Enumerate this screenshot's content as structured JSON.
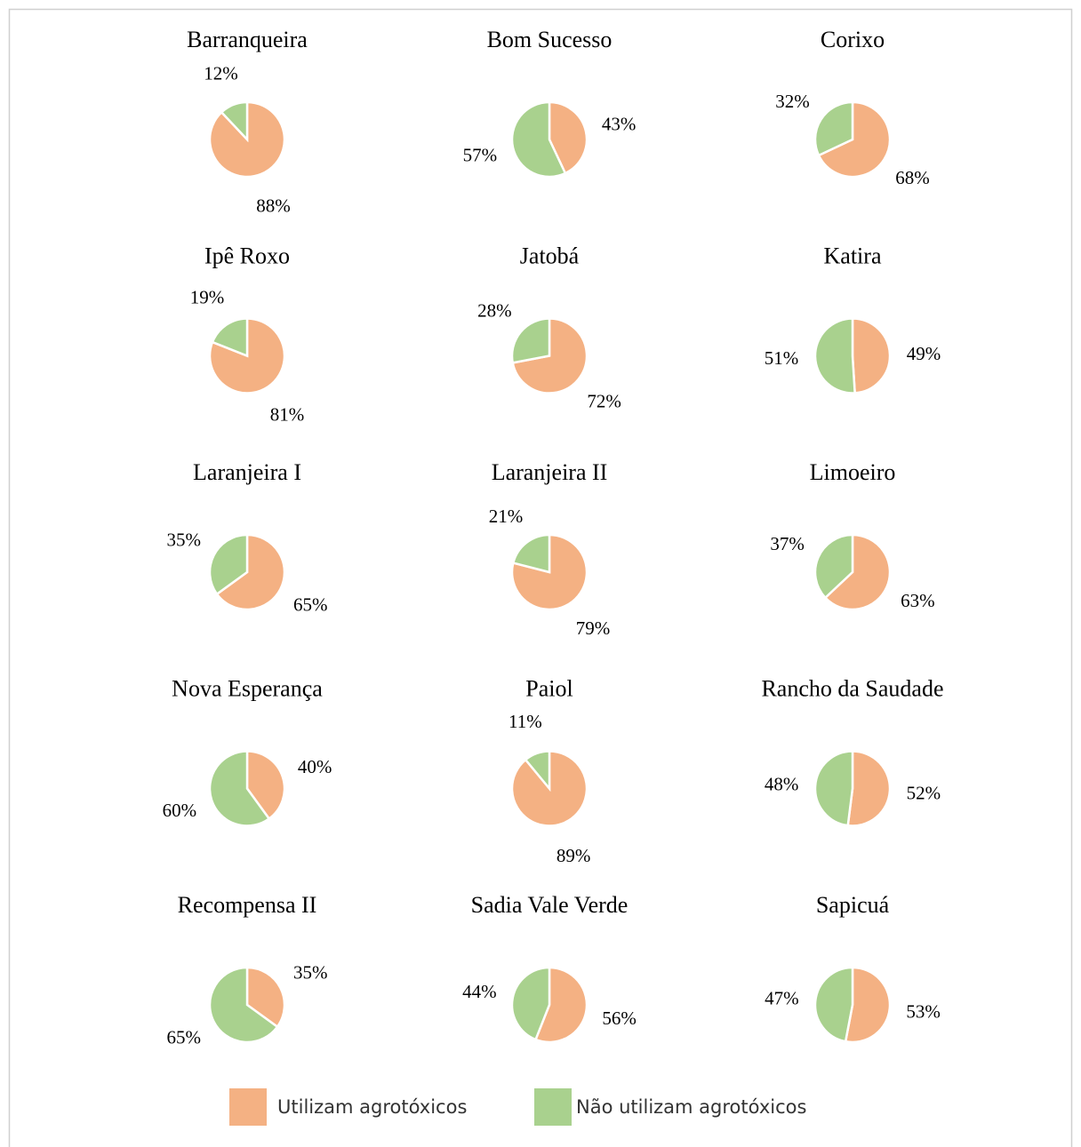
{
  "chart_data": [
    {
      "type": "pie",
      "title": "Barranqueira",
      "categories": [
        "Utilizam agrotóxicos",
        "Não utilizam agrotóxicos"
      ],
      "values": [
        88,
        12
      ],
      "colors": [
        "#f4b183",
        "#a9d18e"
      ]
    },
    {
      "type": "pie",
      "title": "Bom Sucesso",
      "categories": [
        "Utilizam agrotóxicos",
        "Não utilizam agrotóxicos"
      ],
      "values": [
        43,
        57
      ],
      "colors": [
        "#f4b183",
        "#a9d18e"
      ]
    },
    {
      "type": "pie",
      "title": "Corixo",
      "categories": [
        "Utilizam agrotóxicos",
        "Não utilizam agrotóxicos"
      ],
      "values": [
        68,
        32
      ],
      "colors": [
        "#f4b183",
        "#a9d18e"
      ]
    },
    {
      "type": "pie",
      "title": "Ipê Roxo",
      "categories": [
        "Utilizam agrotóxicos",
        "Não utilizam agrotóxicos"
      ],
      "values": [
        81,
        19
      ],
      "colors": [
        "#f4b183",
        "#a9d18e"
      ]
    },
    {
      "type": "pie",
      "title": "Jatobá",
      "categories": [
        "Utilizam agrotóxicos",
        "Não utilizam agrotóxicos"
      ],
      "values": [
        72,
        28
      ],
      "colors": [
        "#f4b183",
        "#a9d18e"
      ]
    },
    {
      "type": "pie",
      "title": "Katira",
      "categories": [
        "Utilizam agrotóxicos",
        "Não utilizam agrotóxicos"
      ],
      "values": [
        49,
        51
      ],
      "colors": [
        "#f4b183",
        "#a9d18e"
      ]
    },
    {
      "type": "pie",
      "title": "Laranjeira I",
      "categories": [
        "Utilizam agrotóxicos",
        "Não utilizam agrotóxicos"
      ],
      "values": [
        65,
        35
      ],
      "colors": [
        "#f4b183",
        "#a9d18e"
      ]
    },
    {
      "type": "pie",
      "title": "Laranjeira II",
      "categories": [
        "Utilizam agrotóxicos",
        "Não utilizam agrotóxicos"
      ],
      "values": [
        79,
        21
      ],
      "colors": [
        "#f4b183",
        "#a9d18e"
      ]
    },
    {
      "type": "pie",
      "title": "Limoeiro",
      "categories": [
        "Utilizam agrotóxicos",
        "Não utilizam agrotóxicos"
      ],
      "values": [
        63,
        37
      ],
      "colors": [
        "#f4b183",
        "#a9d18e"
      ]
    },
    {
      "type": "pie",
      "title": "Nova Esperança",
      "categories": [
        "Utilizam agrotóxicos",
        "Não utilizam agrotóxicos"
      ],
      "values": [
        40,
        60
      ],
      "colors": [
        "#f4b183",
        "#a9d18e"
      ]
    },
    {
      "type": "pie",
      "title": "Paiol",
      "categories": [
        "Utilizam agrotóxicos",
        "Não utilizam agrotóxicos"
      ],
      "values": [
        89,
        11
      ],
      "colors": [
        "#f4b183",
        "#a9d18e"
      ]
    },
    {
      "type": "pie",
      "title": "Rancho da Saudade",
      "categories": [
        "Utilizam agrotóxicos",
        "Não utilizam agrotóxicos"
      ],
      "values": [
        52,
        48
      ],
      "colors": [
        "#f4b183",
        "#a9d18e"
      ]
    },
    {
      "type": "pie",
      "title": "Recompensa II",
      "categories": [
        "Utilizam agrotóxicos",
        "Não utilizam agrotóxicos"
      ],
      "values": [
        35,
        65
      ],
      "colors": [
        "#f4b183",
        "#a9d18e"
      ]
    },
    {
      "type": "pie",
      "title": "Sadia Vale Verde",
      "categories": [
        "Utilizam agrotóxicos",
        "Não utilizam agrotóxicos"
      ],
      "values": [
        56,
        44
      ],
      "colors": [
        "#f4b183",
        "#a9d18e"
      ]
    },
    {
      "type": "pie",
      "title": "Sapicuá",
      "categories": [
        "Utilizam agrotóxicos",
        "Não utilizam agrotóxicos"
      ],
      "values": [
        53,
        47
      ],
      "colors": [
        "#f4b183",
        "#a9d18e"
      ]
    }
  ],
  "value_format": "%"
}
